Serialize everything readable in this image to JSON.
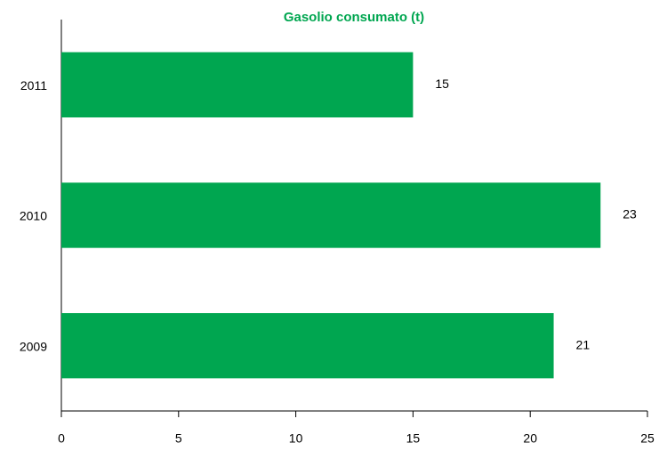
{
  "chart_data": {
    "type": "bar",
    "orientation": "horizontal",
    "title": "Gasolio consumato (t)",
    "categories": [
      "2011",
      "2010",
      "2009"
    ],
    "values": [
      15,
      23,
      21
    ],
    "color": "#00a650",
    "xlim": [
      0,
      25
    ],
    "xticks": [
      0,
      5,
      10,
      15,
      20,
      25
    ],
    "value_labels_shown": true
  }
}
